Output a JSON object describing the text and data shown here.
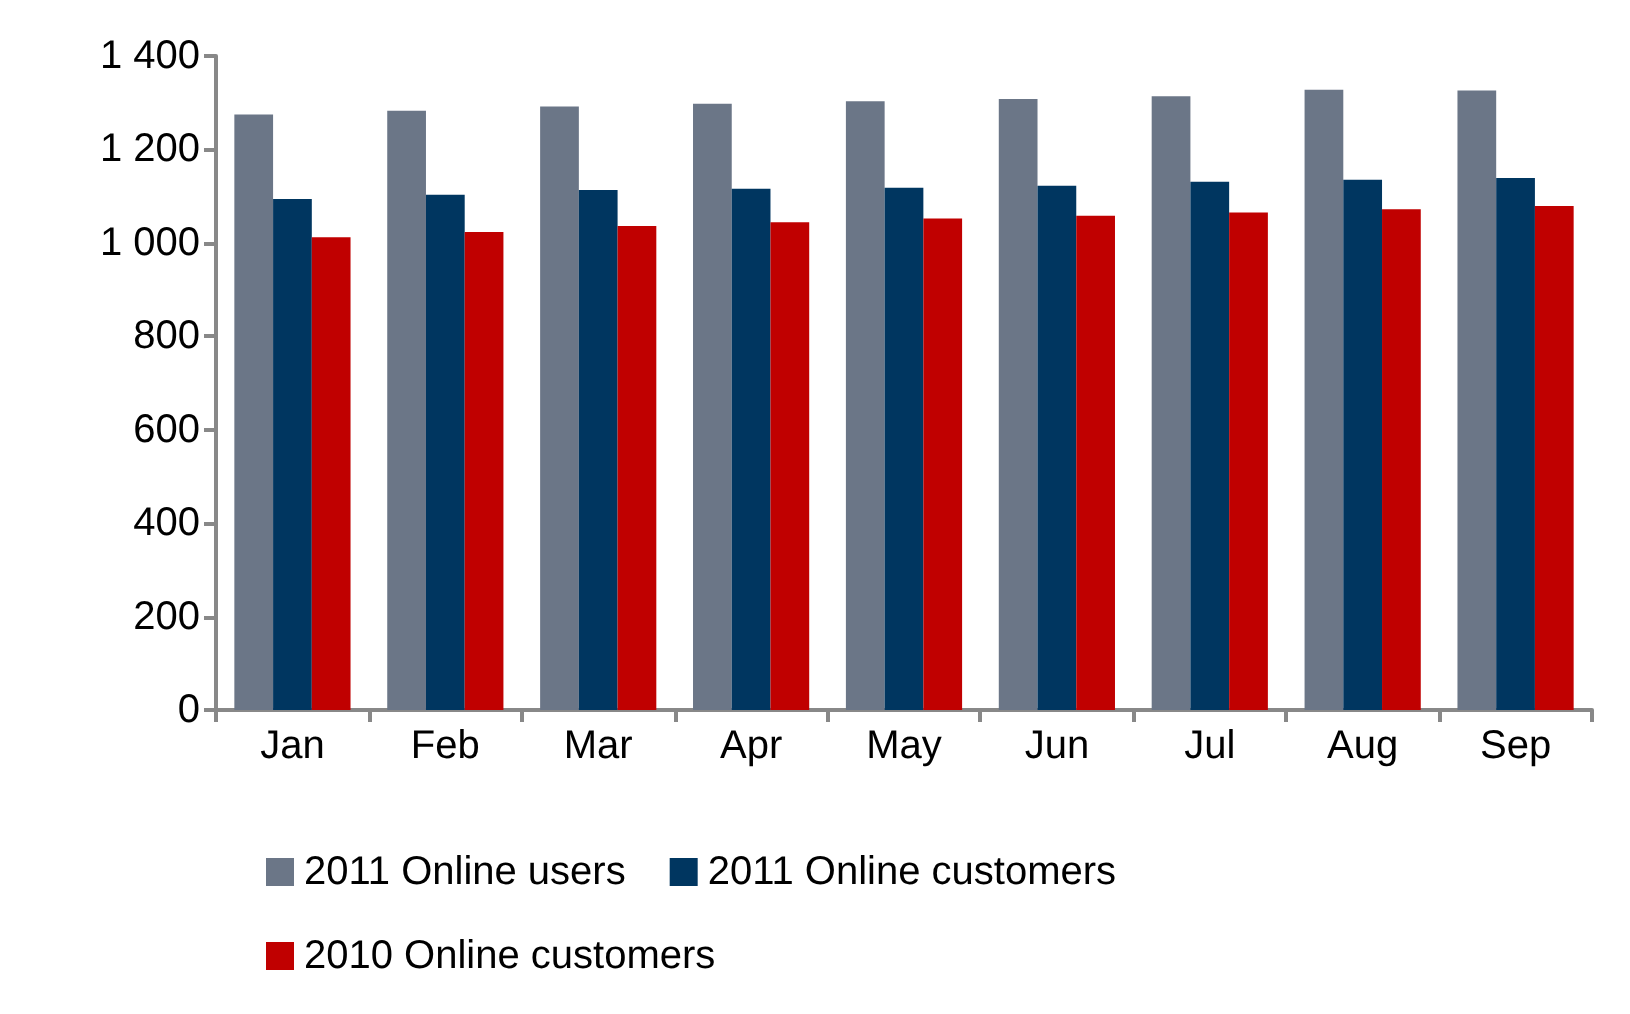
{
  "chart_data": {
    "type": "bar",
    "categories": [
      "Jan",
      "Feb",
      "Mar",
      "Apr",
      "May",
      "Jun",
      "Jul",
      "Aug",
      "Sep"
    ],
    "series": [
      {
        "name": "2011 Online users",
        "color": "#6b7687",
        "values": [
          1275,
          1283,
          1292,
          1298,
          1303,
          1308,
          1314,
          1328,
          1326
        ]
      },
      {
        "name": "2011 Online customers",
        "color": "#003660",
        "values": [
          1094,
          1103,
          1113,
          1116,
          1118,
          1122,
          1131,
          1135,
          1139
        ]
      },
      {
        "name": "2010 Online customers",
        "color": "#c00000",
        "values": [
          1012,
          1023,
          1036,
          1044,
          1052,
          1058,
          1065,
          1072,
          1079
        ]
      }
    ],
    "ylim": [
      0,
      1400
    ],
    "yticks": [
      0,
      200,
      400,
      600,
      800,
      {
        "value": 1000,
        "label": "1 000"
      },
      {
        "value": 1200,
        "label": "1 200"
      },
      {
        "value": 1400,
        "label": "1 400"
      }
    ],
    "grid": false,
    "legend": "bottom"
  }
}
